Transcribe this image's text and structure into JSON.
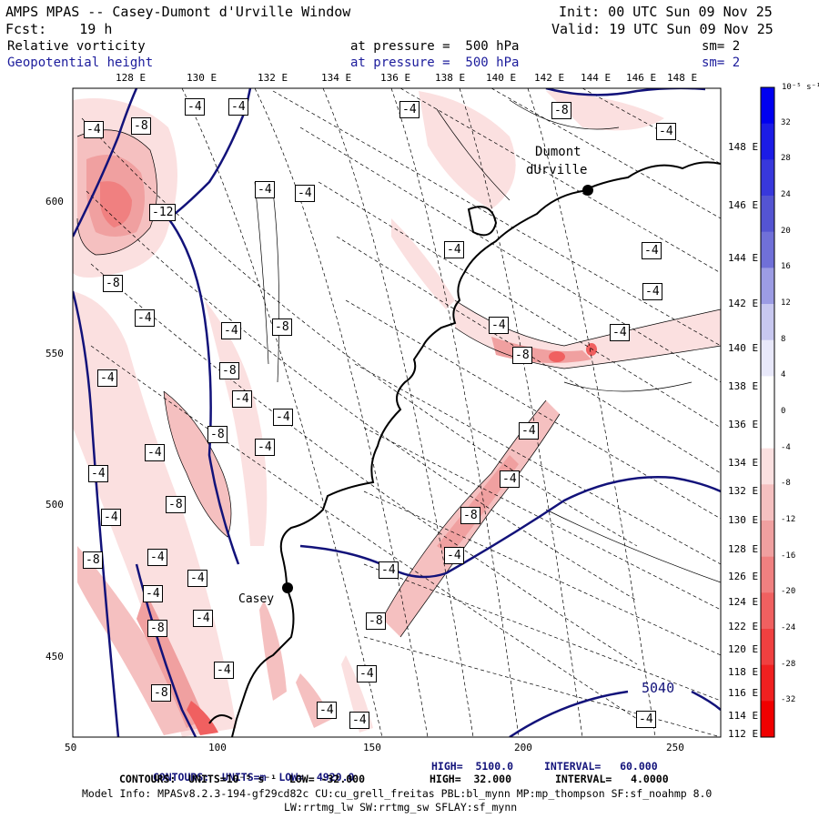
{
  "header": {
    "title": "AMPS MPAS -- Casey-Dumont d'Urville Window",
    "fcst": "Fcst:    19 h",
    "init": "Init: 00 UTC Sun 09 Nov 25",
    "valid": "Valid: 19 UTC Sun 09 Nov 25",
    "field1": {
      "name": "Relative vorticity",
      "level": "at pressure =  500 hPa",
      "sm": "sm= 2"
    },
    "field2": {
      "name": "Geopotential height",
      "level": "at pressure =  500 hPa",
      "sm": "sm= 2"
    }
  },
  "map": {
    "top_lon_labels": [
      "128 E",
      "130 E",
      "132 E",
      "134 E",
      "136 E",
      "138 E",
      "140 E",
      "142 E",
      "144 E",
      "146 E",
      "148 E"
    ],
    "right_lon_labels": [
      "148 E",
      "146 E",
      "144 E",
      "142 E",
      "140 E",
      "138 E",
      "136 E",
      "134 E",
      "132 E",
      "130 E",
      "128 E",
      "126 E",
      "124 E",
      "122 E",
      "120 E",
      "118 E",
      "116 E",
      "114 E",
      "112 E"
    ],
    "x_ticks": [
      "50",
      "100",
      "150",
      "200",
      "250"
    ],
    "y_ticks": [
      "600",
      "550",
      "500",
      "450"
    ],
    "stations": [
      "Dumont",
      "dUrville",
      "Casey"
    ],
    "height_contour_label": "5040",
    "vorticity_labels": [
      "-4",
      "-8",
      "-12"
    ]
  },
  "colorbar": {
    "unit_label": "10⁻⁵ s⁻¹",
    "ticks": [
      "32",
      "28",
      "24",
      "20",
      "16",
      "12",
      "8",
      "4",
      "0",
      "-4",
      "-8",
      "-12",
      "-16",
      "-20",
      "-24",
      "-28",
      "-32"
    ],
    "colors": [
      "#0000f0",
      "#1c1ce6",
      "#3838dc",
      "#5454d2",
      "#7070d8",
      "#9c9ce4",
      "#c8c8f0",
      "#e8e8fa",
      "#ffffff",
      "#ffffff",
      "#fbe0e0",
      "#f5c0c0",
      "#f0a0a0",
      "#f08080",
      "#f06060",
      "#f04040",
      "#f02020",
      "#f00000"
    ]
  },
  "footer": {
    "line1_pre": "CONTOURS:  UNITS=m  LOW=  4920.0",
    "line1_high": "HIGH=  5100.0",
    "line1_int": "INTERVAL=   60.000",
    "line2_pre": "CONTOURS:  UNITS=10⁻⁵ s⁻¹  LOW= -32.000",
    "line2_high": "HIGH=  32.000",
    "line2_int": "INTERVAL=   4.0000",
    "line3": "Model Info: MPASv8.2.3-194-gf29cd82c CU:cu_grell_freitas PBL:bl_mynn MP:mp_thompson SF:sf_noahmp 8.0",
    "line4": "LW:rrtmg_lw SW:rrtmg_sw SFLAY:sf_mynn"
  }
}
